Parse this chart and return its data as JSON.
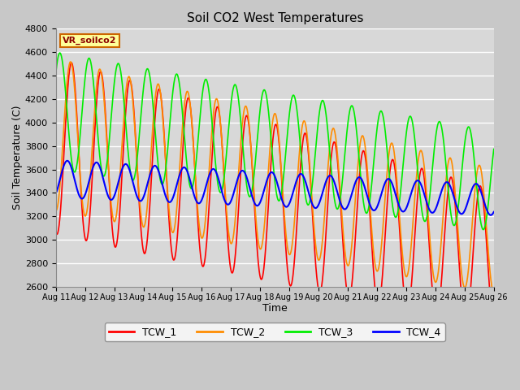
{
  "title": "Soil CO2 West Temperatures",
  "xlabel": "Time",
  "ylabel": "Soil Temperature (C)",
  "ylim": [
    2600,
    4800
  ],
  "xlim": [
    0,
    15
  ],
  "x_tick_labels": [
    "Aug 11",
    "Aug 12",
    "Aug 13",
    "Aug 14",
    "Aug 15",
    "Aug 16",
    "Aug 17",
    "Aug 18",
    "Aug 19",
    "Aug 20",
    "Aug 21",
    "Aug 22",
    "Aug 23",
    "Aug 24",
    "Aug 25",
    "Aug 26"
  ],
  "legend_label": "VR_soilco2",
  "series_labels": [
    "TCW_1",
    "TCW_2",
    "TCW_3",
    "TCW_4"
  ],
  "colors": [
    "#ff0000",
    "#ff8c00",
    "#00ee00",
    "#0000ff"
  ],
  "fig_bg": "#c8c8c8",
  "plot_bg": "#d8d8d8",
  "n_points": 1500
}
